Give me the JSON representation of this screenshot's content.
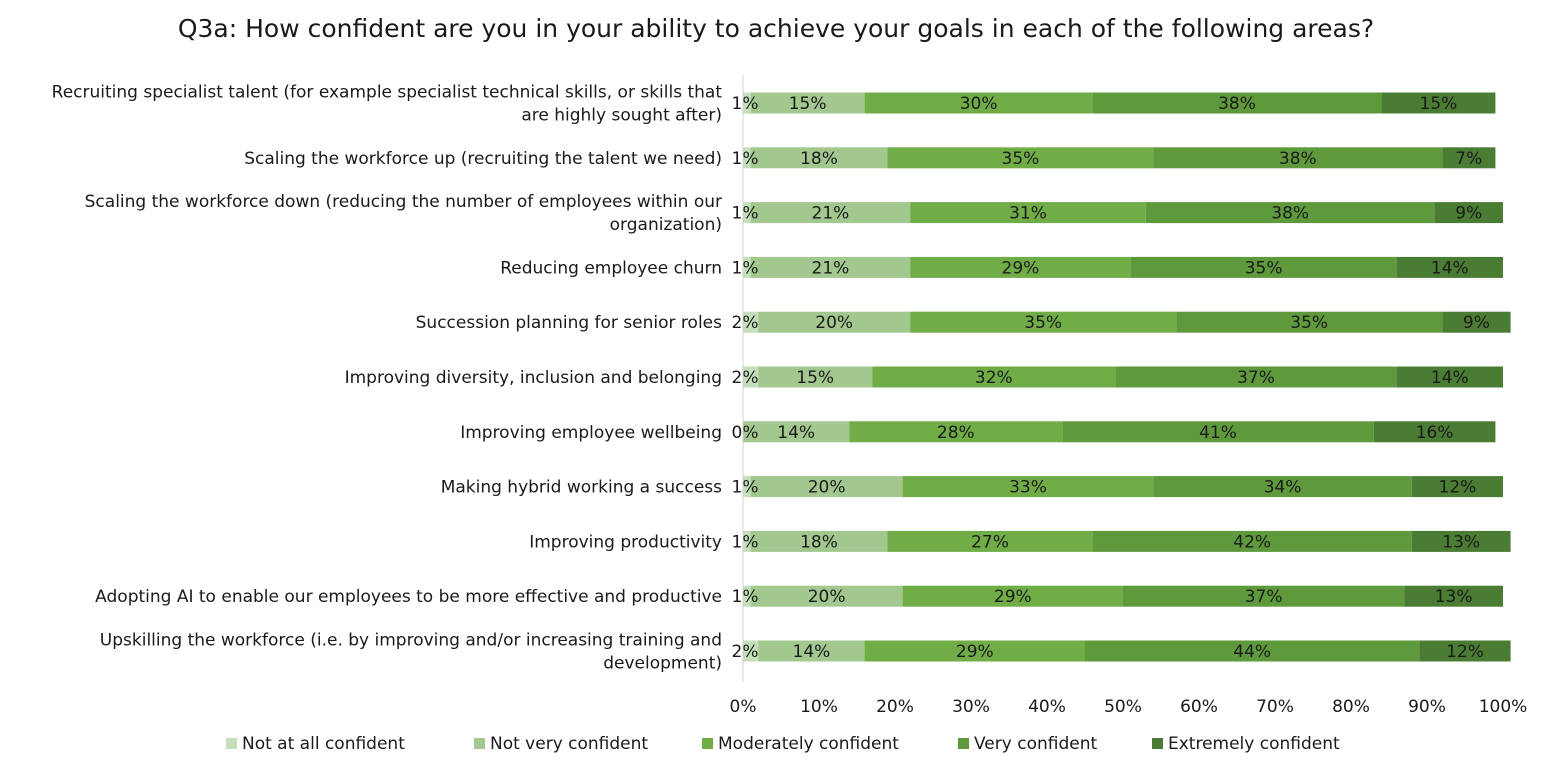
{
  "chart_data": {
    "type": "bar",
    "orientation": "horizontal",
    "stacked": true,
    "title": "Q3a: How confident are you in your ability to achieve your goals in each of the following areas?",
    "categories": [
      "Recruiting specialist talent (for example specialist technical skills, or skills that are highly sought after)",
      "Scaling the workforce up (recruiting the talent we need)",
      "Scaling the workforce down (reducing the number of employees within our organization)",
      "Reducing employee churn",
      "Succession planning for senior roles",
      "Improving diversity, inclusion and belonging",
      "Improving employee wellbeing",
      "Making hybrid working a success",
      "Improving productivity",
      "Adopting AI to enable our employees to be more effective and productive",
      "Upskilling the workforce (i.e. by improving and/or increasing training and development)"
    ],
    "category_lines": [
      [
        "Recruiting specialist talent (for example specialist technical skills, or skills that",
        "are highly sought after)"
      ],
      [
        "Scaling the workforce up (recruiting the talent we need)"
      ],
      [
        "Scaling the workforce down (reducing the number of employees within our",
        "organization)"
      ],
      [
        "Reducing employee churn"
      ],
      [
        "Succession planning for senior roles"
      ],
      [
        "Improving diversity, inclusion and belonging"
      ],
      [
        "Improving employee wellbeing"
      ],
      [
        "Making hybrid working a success"
      ],
      [
        "Improving productivity"
      ],
      [
        "Adopting AI to enable our employees to be more effective and productive"
      ],
      [
        "Upskilling the workforce (i.e. by improving and/or increasing training and",
        "development)"
      ]
    ],
    "series": [
      {
        "name": "Not at all confident",
        "color": "#c5dfbb",
        "values": [
          1,
          1,
          1,
          1,
          2,
          2,
          0,
          1,
          1,
          1,
          2
        ]
      },
      {
        "name": "Not very confident",
        "color": "#a2c78f",
        "values": [
          15,
          18,
          21,
          21,
          20,
          15,
          14,
          20,
          18,
          20,
          14
        ]
      },
      {
        "name": "Moderately confident",
        "color": "#70ad47",
        "values": [
          30,
          35,
          31,
          29,
          35,
          32,
          28,
          33,
          27,
          29,
          29
        ]
      },
      {
        "name": "Very confident",
        "color": "#5e9a3c",
        "values": [
          38,
          38,
          38,
          35,
          35,
          37,
          41,
          34,
          42,
          37,
          44
        ]
      },
      {
        "name": "Extremely confident",
        "color": "#4b7c33",
        "values": [
          15,
          7,
          9,
          14,
          9,
          14,
          16,
          12,
          13,
          13,
          12
        ]
      }
    ],
    "xlim": [
      0,
      100
    ],
    "x_ticks": [
      "0%",
      "10%",
      "20%",
      "30%",
      "40%",
      "50%",
      "60%",
      "70%",
      "80%",
      "90%",
      "100%"
    ],
    "value_suffix": "%",
    "legend_position": "bottom",
    "grid": false
  }
}
